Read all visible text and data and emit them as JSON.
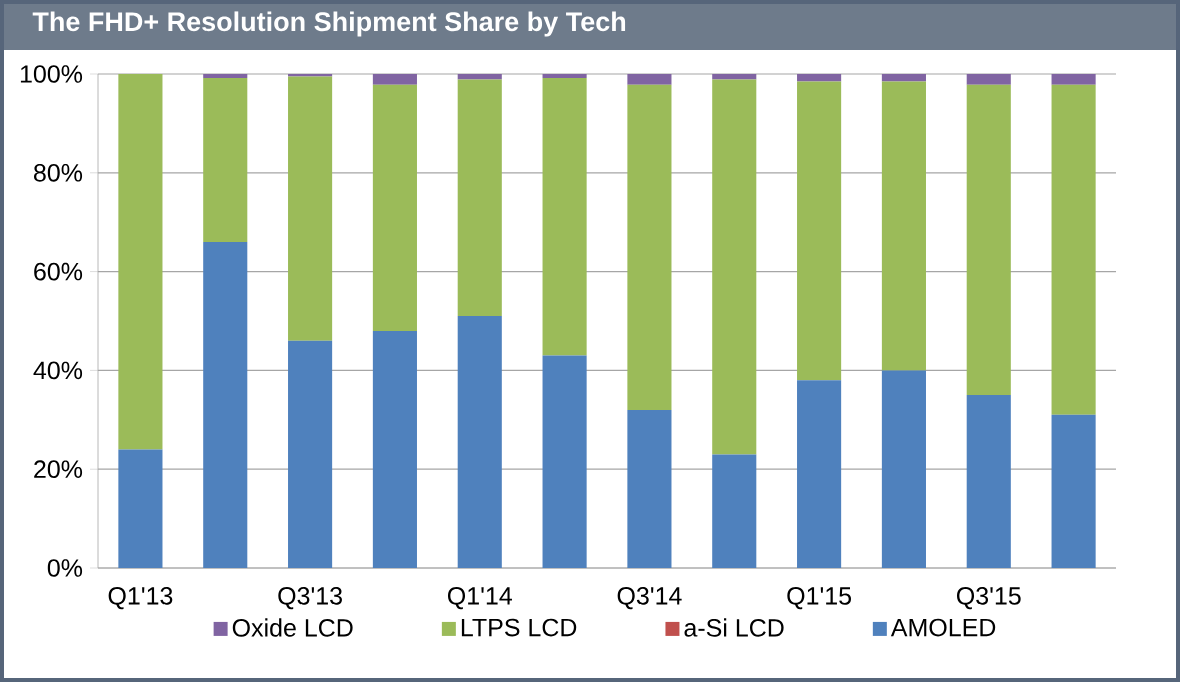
{
  "chart_data": {
    "type": "bar",
    "stacked": true,
    "title": "The FHD+ Resolution Shipment Share by Tech",
    "categories": [
      "Q1'13",
      null,
      "Q3'13",
      null,
      "Q1'14",
      null,
      "Q3'14",
      null,
      "Q1'15",
      null,
      "Q3'15",
      null
    ],
    "series": [
      {
        "name": "AMOLED",
        "color": "#4f81bd",
        "values": [
          24,
          66,
          46,
          48,
          51,
          43,
          32,
          23,
          38,
          40,
          35,
          31
        ]
      },
      {
        "name": "a-Si LCD",
        "color": "#c0504d",
        "values": [
          0,
          0,
          0,
          0,
          0,
          0,
          0,
          0,
          0,
          0,
          0,
          0
        ]
      },
      {
        "name": "LTPS LCD",
        "color": "#9bbb59",
        "values": [
          76,
          33.2,
          53.5,
          49.8,
          47.9,
          56.2,
          65.8,
          75.9,
          60.5,
          58.5,
          62.8,
          66.8
        ]
      },
      {
        "name": "Oxide LCD",
        "color": "#8064a2",
        "values": [
          0,
          0.8,
          0.5,
          2.2,
          1.1,
          0.8,
          2.2,
          1.1,
          1.5,
          1.5,
          2.2,
          2.2
        ]
      }
    ],
    "ylim": [
      0,
      100
    ],
    "yticks": [
      {
        "value": 0,
        "label": "0%"
      },
      {
        "value": 20,
        "label": "20%"
      },
      {
        "value": 40,
        "label": "40%"
      },
      {
        "value": 60,
        "label": "60%"
      },
      {
        "value": 80,
        "label": "80%"
      },
      {
        "value": 100,
        "label": "100%"
      }
    ],
    "grid": "y",
    "legend": "bottom"
  }
}
